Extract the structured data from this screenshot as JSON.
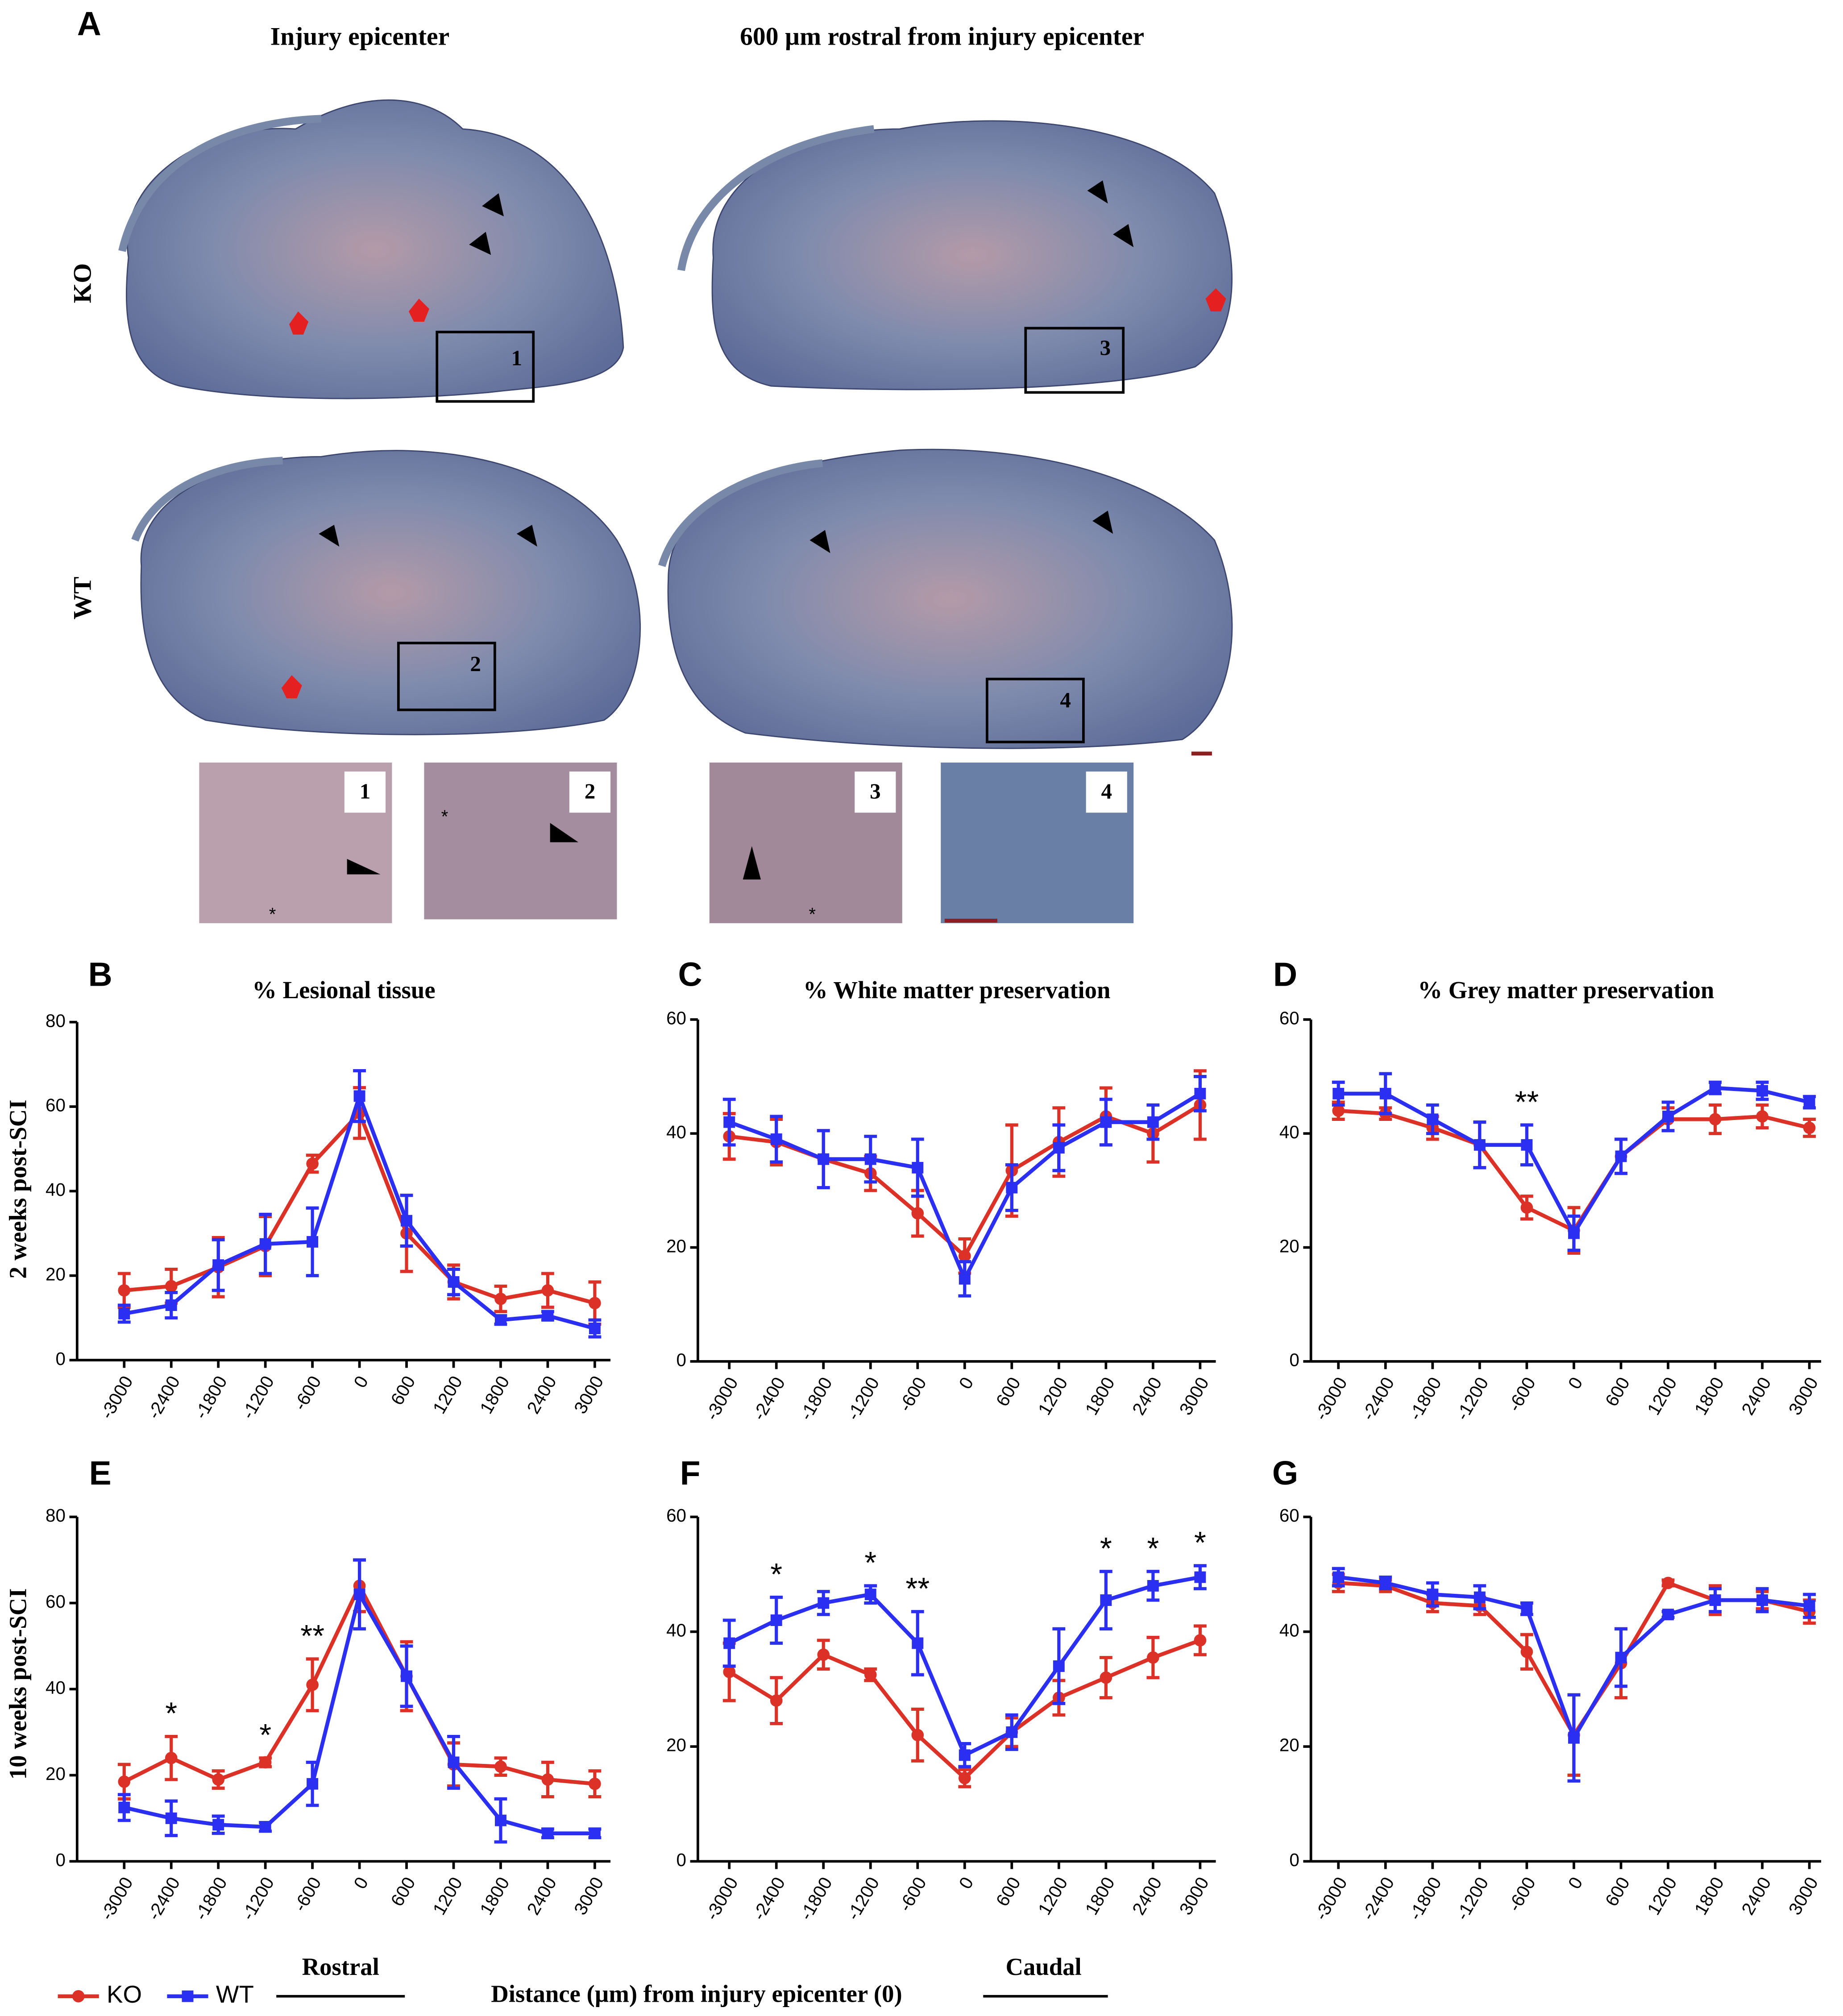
{
  "figure": {
    "panel_a": {
      "label": "A",
      "columns": [
        "Injury epicenter",
        "600 µm rostral from injury epicenter"
      ],
      "rows": [
        "KO",
        "WT"
      ],
      "section_boxes": [
        "1",
        "3",
        "2",
        "4"
      ],
      "insets": [
        "1",
        "2",
        "3",
        "4"
      ],
      "inset_marks": [
        "*",
        "*",
        "*"
      ]
    },
    "row_labels": [
      "2 weeks post-SCI",
      "10 weeks post-SCI"
    ],
    "x_axis": {
      "rostral": "Rostral",
      "label": "Distance (µm) from injury epicenter (0)",
      "caudal": "Caudal"
    }
  },
  "chart_data": [
    {
      "type": "line",
      "panel_label": "B",
      "title": "% Lesional tissue",
      "x": [
        -3000,
        -2400,
        -1800,
        -1200,
        -600,
        0,
        600,
        1200,
        1800,
        2400,
        3000
      ],
      "xlim": [
        -3600,
        3200
      ],
      "xticks": [
        -3000,
        -2400,
        -1800,
        -1200,
        -600,
        0,
        600,
        1200,
        1800,
        2400,
        3000
      ],
      "ylim": [
        0,
        80
      ],
      "yticks": [
        0,
        20,
        40,
        60,
        80
      ],
      "series": [
        {
          "name": "KO",
          "color": "#dc3127",
          "marker": "circle",
          "values": [
            16.5,
            17.5,
            22,
            27,
            46.5,
            58.5,
            30,
            18.5,
            14.5,
            16.5,
            13.5
          ],
          "errors": [
            4,
            4,
            7,
            7,
            2,
            6,
            9,
            4,
            3,
            4,
            5
          ]
        },
        {
          "name": "WT",
          "color": "#2b2ff2",
          "marker": "square",
          "values": [
            11,
            13,
            22.5,
            27.5,
            28,
            62.5,
            33,
            18.5,
            9.5,
            10.5,
            7.5
          ],
          "errors": [
            2,
            3,
            6,
            7,
            8,
            6,
            6,
            3,
            1,
            1,
            2
          ]
        }
      ],
      "annotations": []
    },
    {
      "type": "line",
      "panel_label": "C",
      "title": "% White matter preservation",
      "x": [
        -3000,
        -2400,
        -1800,
        -1200,
        -600,
        0,
        600,
        1200,
        1800,
        2400,
        3000
      ],
      "xlim": [
        -3400,
        3200
      ],
      "xticks": [
        -3000,
        -2400,
        -1800,
        -1200,
        -600,
        0,
        600,
        1200,
        1800,
        2400,
        3000
      ],
      "ylim": [
        0,
        60
      ],
      "yticks": [
        0,
        20,
        40,
        60
      ],
      "series": [
        {
          "name": "KO",
          "color": "#dc3127",
          "marker": "circle",
          "values": [
            39.5,
            38.5,
            35.5,
            33,
            26,
            18.5,
            33.5,
            38.5,
            43,
            40,
            45
          ],
          "errors": [
            4,
            4,
            5,
            3,
            4,
            3,
            8,
            6,
            5,
            5,
            6
          ]
        },
        {
          "name": "WT",
          "color": "#2b2ff2",
          "marker": "square",
          "values": [
            42,
            39,
            35.5,
            35.5,
            34,
            14.5,
            30.5,
            37.5,
            42,
            42,
            47
          ],
          "errors": [
            4,
            4,
            5,
            4,
            5,
            3,
            4,
            4,
            4,
            3,
            3
          ]
        }
      ],
      "annotations": []
    },
    {
      "type": "line",
      "panel_label": "D",
      "title": "% Grey matter preservation",
      "x": [
        -3000,
        -2400,
        -1800,
        -1200,
        -600,
        0,
        600,
        1200,
        1800,
        2400,
        3000
      ],
      "xlim": [
        -3350,
        3150
      ],
      "xticks": [
        -3000,
        -2400,
        -1800,
        -1200,
        -600,
        0,
        600,
        1200,
        1800,
        2400,
        3000
      ],
      "ylim": [
        0,
        60
      ],
      "yticks": [
        0,
        20,
        40,
        60
      ],
      "series": [
        {
          "name": "KO",
          "color": "#dc3127",
          "marker": "circle",
          "values": [
            44,
            43.5,
            41,
            38,
            27,
            23,
            36,
            42.5,
            42.5,
            43,
            41
          ],
          "errors": [
            1.5,
            1,
            2,
            4,
            2,
            4,
            3,
            2,
            2.5,
            2,
            1.5
          ]
        },
        {
          "name": "WT",
          "color": "#2b2ff2",
          "marker": "square",
          "values": [
            47,
            47,
            42.5,
            38,
            38,
            22.5,
            36,
            43,
            48,
            47.5,
            45.5
          ],
          "errors": [
            2,
            3.5,
            2.5,
            4,
            3.5,
            3,
            3,
            2.5,
            1,
            1.5,
            1
          ]
        }
      ],
      "annotations": [
        {
          "text": "**",
          "x": -600
        }
      ]
    },
    {
      "type": "line",
      "panel_label": "E",
      "x": [
        -3000,
        -2400,
        -1800,
        -1200,
        -600,
        0,
        600,
        1200,
        1800,
        2400,
        3000
      ],
      "xlim": [
        -3600,
        3200
      ],
      "xticks": [
        -3000,
        -2400,
        -1800,
        -1200,
        -600,
        0,
        600,
        1200,
        1800,
        2400,
        3000
      ],
      "ylim": [
        0,
        80
      ],
      "yticks": [
        0,
        20,
        40,
        60,
        80
      ],
      "series": [
        {
          "name": "KO",
          "color": "#dc3127",
          "marker": "circle",
          "values": [
            18.5,
            24,
            19,
            23,
            41,
            64,
            43,
            22.5,
            22,
            19,
            18
          ],
          "errors": [
            4,
            5,
            2,
            1,
            6,
            6,
            8,
            5,
            2,
            4,
            3
          ]
        },
        {
          "name": "WT",
          "color": "#2b2ff2",
          "marker": "square",
          "values": [
            12.5,
            10,
            8.5,
            8,
            18,
            62,
            43,
            23,
            9.5,
            6.5,
            6.5
          ],
          "errors": [
            3,
            4,
            2,
            1,
            5,
            8,
            7,
            6,
            5,
            1,
            1
          ]
        }
      ],
      "annotations": [
        {
          "text": "*",
          "x": -2400
        },
        {
          "text": "*",
          "x": -1200
        },
        {
          "text": "**",
          "x": -600
        }
      ]
    },
    {
      "type": "line",
      "panel_label": "F",
      "x": [
        -3000,
        -2400,
        -1800,
        -1200,
        -600,
        0,
        600,
        1200,
        1800,
        2400,
        3000
      ],
      "xlim": [
        -3400,
        3200
      ],
      "xticks": [
        -3000,
        -2400,
        -1800,
        -1200,
        -600,
        0,
        600,
        1200,
        1800,
        2400,
        3000
      ],
      "ylim": [
        0,
        60
      ],
      "yticks": [
        0,
        20,
        40,
        60
      ],
      "series": [
        {
          "name": "KO",
          "color": "#dc3127",
          "marker": "circle",
          "values": [
            33,
            28,
            36,
            32.5,
            22,
            14.5,
            22.5,
            28.5,
            32,
            35.5,
            38.5
          ],
          "errors": [
            5,
            4,
            2.5,
            1,
            4.5,
            1.5,
            2.5,
            3,
            3.5,
            3.5,
            2.5
          ]
        },
        {
          "name": "WT",
          "color": "#2b2ff2",
          "marker": "square",
          "values": [
            38,
            42,
            45,
            46.5,
            38,
            18.5,
            22.5,
            34,
            45.5,
            48,
            49.5
          ],
          "errors": [
            4,
            4,
            2,
            1.5,
            5.5,
            2,
            3,
            6.5,
            5,
            2.5,
            2
          ]
        }
      ],
      "annotations": [
        {
          "text": "*",
          "x": -2400
        },
        {
          "text": "*",
          "x": -1200
        },
        {
          "text": "**",
          "x": -600
        },
        {
          "text": "*",
          "x": 1800
        },
        {
          "text": "*",
          "x": 2400
        },
        {
          "text": "*",
          "x": 3000
        }
      ]
    },
    {
      "type": "line",
      "panel_label": "G",
      "x": [
        -3000,
        -2400,
        -1800,
        -1200,
        -600,
        0,
        600,
        1200,
        1800,
        2400,
        3000
      ],
      "xlim": [
        -3350,
        3150
      ],
      "xticks": [
        -3000,
        -2400,
        -1800,
        -1200,
        -600,
        0,
        600,
        1200,
        1800,
        2400,
        3000
      ],
      "ylim": [
        0,
        60
      ],
      "yticks": [
        0,
        20,
        40,
        60
      ],
      "series": [
        {
          "name": "KO",
          "color": "#dc3127",
          "marker": "circle",
          "values": [
            48.5,
            48,
            45,
            44.5,
            36.5,
            22,
            34.5,
            48.5,
            45.5,
            45.5,
            43.5
          ],
          "errors": [
            1.5,
            1,
            1.5,
            1.5,
            3,
            7,
            6,
            0.5,
            2.5,
            1.5,
            2
          ]
        },
        {
          "name": "WT",
          "color": "#2b2ff2",
          "marker": "square",
          "values": [
            49.5,
            48.5,
            46.5,
            46,
            44,
            21.5,
            35.5,
            43,
            45.5,
            45.5,
            44.5
          ],
          "errors": [
            1.5,
            1,
            2,
            2,
            1,
            7.5,
            5,
            0.5,
            2,
            2,
            2
          ]
        }
      ],
      "annotations": []
    }
  ]
}
